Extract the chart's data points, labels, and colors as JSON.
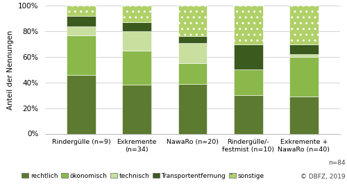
{
  "categories": [
    "Rindergülle (n=9)",
    "Exkremente\n(n=34)",
    "NawaRo (n=20)",
    "Rindergülle/-\nfestmist (n=10)",
    "Exkremente +\nNawaRo (n=40)"
  ],
  "series_keys": [
    "rechtlich",
    "ökonomisch",
    "technisch",
    "Transportentfernung",
    "sonstige"
  ],
  "series": {
    "rechtlich": [
      0.46,
      0.38,
      0.39,
      0.3,
      0.29
    ],
    "ökonomisch": [
      0.31,
      0.27,
      0.16,
      0.2,
      0.31
    ],
    "technisch": [
      0.07,
      0.15,
      0.16,
      0.0,
      0.02
    ],
    "Transportentfernung": [
      0.08,
      0.07,
      0.05,
      0.2,
      0.08
    ],
    "sonstige": [
      0.08,
      0.13,
      0.24,
      0.3,
      0.3
    ]
  },
  "colors": {
    "rechtlich": "#5c7a30",
    "ökonomisch": "#8ab84a",
    "technisch": "#c8dfa0",
    "Transportentfernung": "#3a5a1e",
    "sonstige": "#b0d068"
  },
  "hatches": {
    "rechtlich": "",
    "ökonomisch": "",
    "technisch": "",
    "Transportentfernung": "",
    "sonstige": ".."
  },
  "ylabel": "Anteil der Nennungen",
  "ylim": [
    0,
    1.0
  ],
  "yticks": [
    0.0,
    0.2,
    0.4,
    0.6,
    0.8,
    1.0
  ],
  "ytick_labels": [
    "0%",
    "20%",
    "40%",
    "60%",
    "80%",
    "100%"
  ],
  "note": "n=84",
  "copyright": "© DBFZ, 2019",
  "bar_width": 0.52,
  "bg_color": "#ffffff",
  "grid_color": "#cccccc"
}
